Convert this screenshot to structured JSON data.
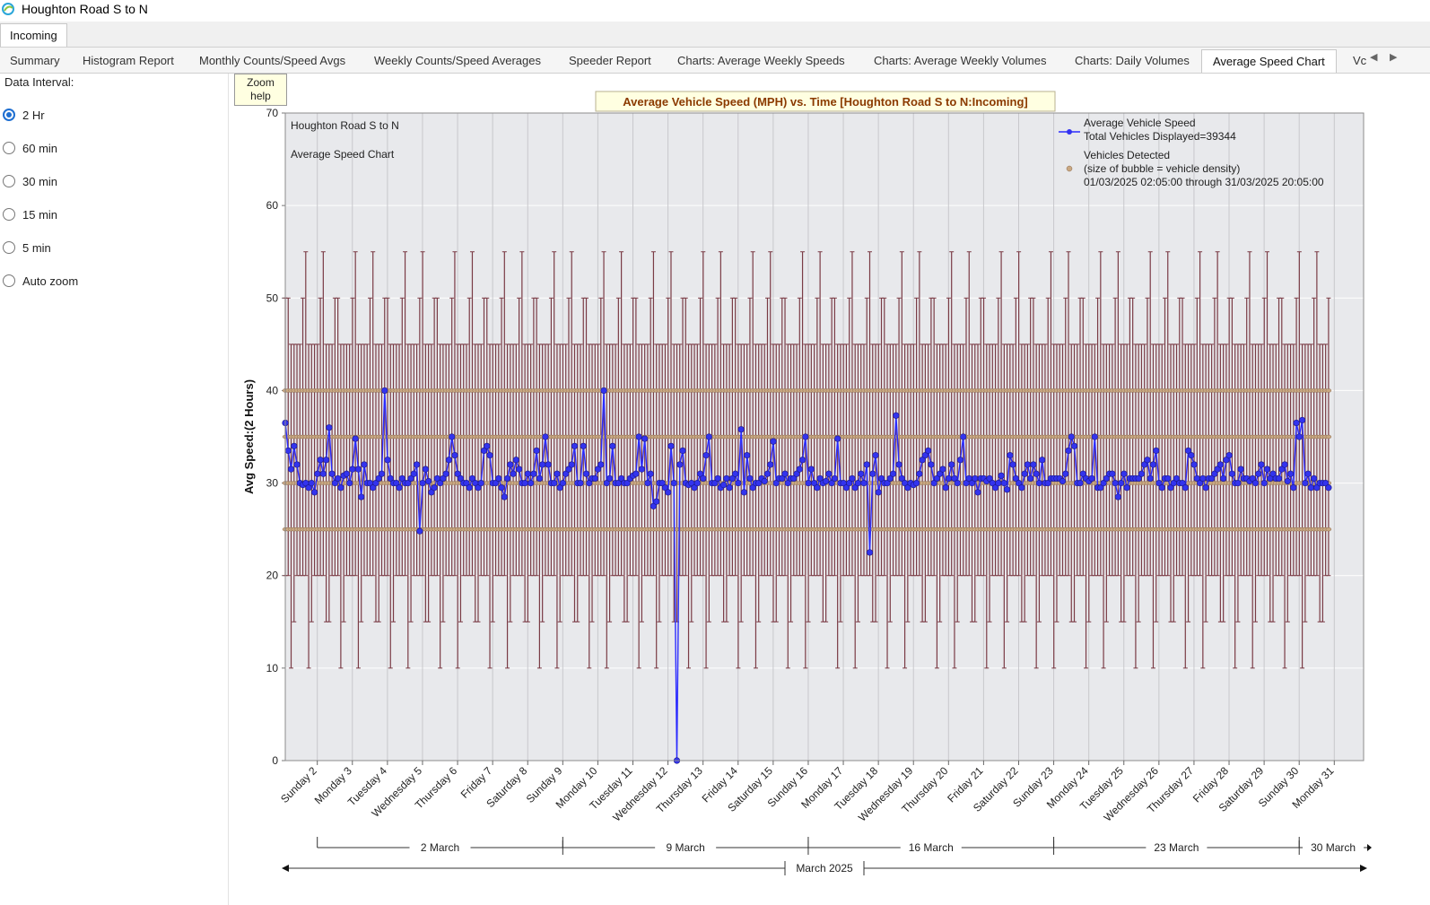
{
  "window": {
    "title": "Houghton Road S to N"
  },
  "direction_tab": "Incoming",
  "tabs": [
    {
      "label": "Summary"
    },
    {
      "label": "Histogram Report"
    },
    {
      "label": "Monthly Counts/Speed Avgs"
    },
    {
      "label": "Weekly Counts/Speed Averages"
    },
    {
      "label": "Speeder Report"
    },
    {
      "label": "Charts: Average Weekly Speeds"
    },
    {
      "label": "Charts: Average Weekly Volumes"
    },
    {
      "label": "Charts: Daily Volumes"
    },
    {
      "label": "Average Speed Chart",
      "active": true
    },
    {
      "label": "Vc"
    }
  ],
  "left_panel": {
    "label": "Data Interval:",
    "options": [
      {
        "label": "2 Hr",
        "checked": true
      },
      {
        "label": "60 min",
        "checked": false
      },
      {
        "label": "30 min",
        "checked": false
      },
      {
        "label": "15 min",
        "checked": false
      },
      {
        "label": "5 min",
        "checked": false
      },
      {
        "label": "Auto zoom",
        "checked": false
      }
    ]
  },
  "zoom_help": {
    "line1": "Zoom",
    "line2": "help"
  },
  "colors": {
    "series_line": "#2b2bff",
    "series_marker": "#3333ee",
    "range_bars": "#7a3b45",
    "bubbles": "#c9a882",
    "plot_bg": "#e8e9ec",
    "title_bg": "#ffffe1",
    "title_text": "#8b3a00"
  },
  "chart_data": {
    "type": "line",
    "title": "Average Vehicle Speed (MPH) vs. Time  [Houghton Road S to N:Incoming]",
    "annotations": [
      "Houghton Road S to N",
      "Average Speed Chart"
    ],
    "ylabel": "Avg Speed:(2 Hours)",
    "ylim": [
      0,
      70
    ],
    "yticks": [
      0,
      10,
      20,
      30,
      40,
      50,
      60,
      70
    ],
    "xlim": [
      "2025-03-01 02:05",
      "2025-03-31 20:05"
    ],
    "grid": true,
    "legend_position": "top-right",
    "legend": {
      "series_name": "Average Vehicle Speed",
      "series_detail": "Total Vehicles Displayed=39344",
      "bubble_name": "Vehicles Detected",
      "bubble_detail": "(size of bubble = vehicle density)",
      "range_text": "01/03/2025 02:05:00 through 31/03/2025 20:05:00"
    },
    "x_day_labels": [
      "Sunday 2",
      "Monday 3",
      "Tuesday 4",
      "Wednesday 5",
      "Thursday 6",
      "Friday 7",
      "Saturday 8",
      "Sunday 9",
      "Monday 10",
      "Tuesday 11",
      "Wednesday 12",
      "Thursday 13",
      "Friday 14",
      "Saturday 15",
      "Sunday 16",
      "Monday 17",
      "Tuesday 18",
      "Wednesday 19",
      "Thursday 20",
      "Friday 21",
      "Saturday 22",
      "Sunday 23",
      "Monday 24",
      "Tuesday 25",
      "Wednesday 26",
      "Thursday 27",
      "Friday 28",
      "Saturday 29",
      "Sunday 30",
      "Monday 31"
    ],
    "x_week_labels": [
      "2 March",
      "9 March",
      "16 March",
      "23 March",
      "30 March"
    ],
    "x_month_label": "March 2025",
    "interval_hours": 2,
    "avg_speed_by_day": [
      [
        36.5,
        33.5,
        31.5,
        34,
        32,
        30,
        29.8,
        30,
        29.5,
        30,
        29,
        31
      ],
      [
        32.5,
        31,
        32.5,
        36,
        31,
        30,
        30.5,
        29.5,
        30.8,
        31,
        30,
        31.5
      ],
      [
        34.8,
        31.5,
        28.5,
        32,
        30,
        30,
        29.5,
        30,
        30.5,
        31,
        40,
        32.5
      ],
      [
        30.5,
        30,
        30,
        29.5,
        30.5,
        30,
        30,
        30.5,
        31,
        32,
        24.8,
        30
      ],
      [
        31.5,
        30.2,
        29,
        29.5,
        30.5,
        30,
        30.5,
        31,
        32.5,
        35,
        33,
        31
      ],
      [
        30.5,
        30,
        30,
        29.5,
        30.5,
        30,
        29.5,
        30,
        33.5,
        34,
        33,
        30
      ],
      [
        30,
        30.5,
        29.5,
        28.5,
        30.5,
        32,
        31,
        32.5,
        31.5,
        30,
        30,
        31
      ],
      [
        30,
        31,
        33.5,
        30.5,
        32,
        35,
        32,
        30,
        30,
        31,
        29.5,
        30
      ],
      [
        31,
        31.5,
        32,
        34,
        30,
        30,
        34,
        31,
        30,
        30.5,
        30.5,
        31.5
      ],
      [
        32,
        40,
        30,
        30.5,
        34,
        30,
        30,
        30.5,
        30,
        30,
        30.5,
        30.8
      ],
      [
        31,
        35,
        31.5,
        34.8,
        30,
        31,
        27.5,
        28,
        30,
        30,
        29.5,
        29
      ],
      [
        34,
        30,
        0,
        32,
        33.5,
        30,
        29.8,
        30,
        29.5,
        30,
        31,
        30.5
      ],
      [
        33,
        35,
        30,
        30,
        30.5,
        29.5,
        29.8,
        30.5,
        29.5,
        30.5,
        31,
        30
      ],
      [
        35.8,
        29,
        33,
        30.5,
        29.5,
        30,
        30,
        30.5,
        30.2,
        31,
        32,
        34.5
      ],
      [
        30,
        30.5,
        30.5,
        31,
        30,
        30.5,
        30.5,
        31,
        31.5,
        32.5,
        35,
        30
      ],
      [
        31.5,
        30,
        29.5,
        30.5,
        30,
        30.2,
        31,
        30,
        30.5,
        34.8,
        30,
        30
      ],
      [
        29.5,
        30,
        30.5,
        29.5,
        30,
        31,
        30,
        32,
        22.5,
        31,
        33,
        29
      ],
      [
        30.5,
        30,
        30,
        30.5,
        31,
        37.3,
        32,
        30.5,
        30,
        29.5,
        30,
        29.8
      ],
      [
        30,
        31,
        32.5,
        33,
        33.5,
        32,
        30,
        30.5,
        31,
        31.5,
        29.5,
        30.5
      ],
      [
        32,
        30.5,
        30,
        32.5,
        35,
        30,
        30.5,
        30,
        30.5,
        29,
        30.5,
        30.5
      ],
      [
        30.2,
        30.5,
        30,
        29.5,
        30,
        30.8,
        30,
        29.3,
        33,
        32,
        30.5,
        30
      ],
      [
        29.5,
        31,
        32,
        30.5,
        32,
        31,
        30,
        32.5,
        30,
        30,
        30.5,
        30.5
      ],
      [
        30.5,
        30.5,
        30.2,
        31,
        33.5,
        35,
        34,
        30,
        30,
        31,
        30.5,
        30.2
      ],
      [
        30.5,
        35,
        29.5,
        29.5,
        30,
        30.5,
        31,
        31,
        30,
        28.5,
        30,
        31
      ],
      [
        29.5,
        30.5,
        30.5,
        30.5,
        30.5,
        31,
        32,
        32.5,
        30.5,
        32,
        33.5,
        30
      ],
      [
        29.5,
        30.5,
        30.5,
        29.5,
        30,
        30.5,
        30,
        30,
        29.5,
        33.5,
        33,
        32
      ],
      [
        30.5,
        30,
        30.5,
        29.5,
        30.5,
        30.5,
        31,
        31.5,
        32,
        30.5,
        32.5,
        33
      ],
      [
        31,
        30,
        30,
        31.5,
        30.5,
        30.5,
        30.2,
        30.5,
        30,
        31,
        32,
        30
      ],
      [
        31.5,
        30.5,
        31,
        30.5,
        30.5,
        31.5,
        32,
        30.2,
        31,
        29.5,
        36.5,
        35
      ],
      [
        36.8,
        30,
        31,
        29.5,
        30.5,
        29.5,
        30,
        30,
        30,
        29.5
      ]
    ]
  }
}
